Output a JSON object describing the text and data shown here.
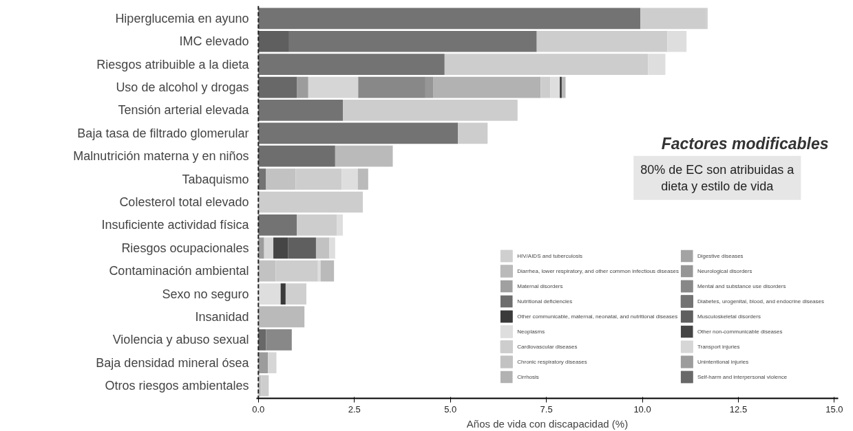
{
  "chart_data": {
    "type": "bar",
    "orientation": "horizontal",
    "stacked": true,
    "xlabel": "Años de vida con discapacidad (%)",
    "categories": [
      "Hiperglucemia en ayuno",
      "IMC elevado",
      "Riesgos atribuible a la dieta",
      "Uso de alcohol y drogas",
      "Tensión arterial elevada",
      "Baja tasa de filtrado glomerular",
      "Malnutrición materna y en niños",
      "Tabaquismo",
      "Colesterol total elevado",
      "Insuficiente actividad física",
      "Riesgos ocupacionales",
      "Contaminación ambiental",
      "Sexo no seguro",
      "Insanidad",
      "Violencia y abuso sexual",
      "Baja densidad mineral ósea",
      "Otros riesgos ambientales"
    ],
    "xlim": [
      -0.05,
      15.1
    ],
    "xticks": [
      {
        "value": 0,
        "label": "0.0"
      },
      2.5,
      {
        "value": 5,
        "label": "5.0"
      },
      7.5,
      {
        "value": 10,
        "label": "10.0"
      },
      12.5,
      {
        "value": 15,
        "label": "15.0"
      }
    ],
    "ref_lines": [
      {
        "axis": "x",
        "value": 0,
        "label": null,
        "color": "#222222",
        "line_style": "dashed"
      }
    ],
    "annotations": [
      "Factores modificables",
      "80% de EC son atribuidas a\ndieta y estilo de vida"
    ],
    "legend": "bottom right",
    "series": [
      {
        "name": "Self-harm and interpersonal violence",
        "color": "#686868",
        "values": [
          null,
          null,
          null,
          1.0,
          null,
          null,
          null,
          null,
          null,
          null,
          null,
          null,
          null,
          null,
          0.2,
          null,
          null
        ]
      },
      {
        "name": "Unintentional injuries",
        "color": "#9c9c9c",
        "values": [
          null,
          null,
          null,
          0.3,
          null,
          null,
          null,
          null,
          null,
          null,
          0.15,
          null,
          null,
          null,
          null,
          0.25,
          null
        ]
      },
      {
        "name": "Transport injuries",
        "color": "#d6d6d6",
        "values": [
          null,
          null,
          null,
          1.3,
          null,
          null,
          null,
          null,
          null,
          null,
          0.24,
          null,
          null,
          null,
          null,
          0.22,
          null
        ]
      },
      {
        "name": "Other non-communicable diseases",
        "color": "#454545",
        "values": [
          null,
          null,
          null,
          null,
          null,
          null,
          null,
          null,
          null,
          null,
          0.38,
          null,
          null,
          null,
          null,
          null,
          null
        ]
      },
      {
        "name": "Musculoskeletal disorders",
        "color": "#5f5f5f",
        "values": [
          null,
          0.8,
          null,
          null,
          null,
          null,
          null,
          null,
          null,
          null,
          0.73,
          null,
          null,
          null,
          null,
          null,
          null
        ]
      },
      {
        "name": "Diabetes, urogenital, blood, and endocrine diseases",
        "color": "#737373",
        "values": [
          9.95,
          6.45,
          4.85,
          null,
          2.2,
          5.2,
          null,
          0.2,
          null,
          1.0,
          null,
          null,
          null,
          null,
          null,
          null,
          null
        ]
      },
      {
        "name": "Mental and substance use disorders",
        "color": "#888888",
        "values": [
          null,
          null,
          null,
          1.75,
          null,
          null,
          null,
          null,
          null,
          null,
          null,
          null,
          null,
          null,
          0.67,
          null,
          null
        ]
      },
      {
        "name": "Neurological disorders",
        "color": "#969696",
        "values": [
          null,
          null,
          null,
          0.2,
          null,
          null,
          null,
          null,
          null,
          null,
          null,
          null,
          null,
          null,
          null,
          null,
          null
        ]
      },
      {
        "name": "Digestive diseases",
        "color": "#a3a3a3",
        "values": [
          null,
          null,
          null,
          null,
          null,
          null,
          null,
          null,
          null,
          null,
          null,
          null,
          null,
          null,
          null,
          null,
          null
        ]
      },
      {
        "name": "Cirrhosis",
        "color": "#b2b2b2",
        "values": [
          null,
          null,
          null,
          2.8,
          null,
          null,
          null,
          null,
          null,
          null,
          null,
          null,
          null,
          null,
          null,
          null,
          null
        ]
      },
      {
        "name": "Chronic respiratory diseases",
        "color": "#c2c2c2",
        "values": [
          null,
          null,
          null,
          null,
          null,
          null,
          null,
          0.77,
          null,
          null,
          0.35,
          0.45,
          null,
          null,
          null,
          null,
          0.07
        ]
      },
      {
        "name": "Cardiovascular diseases",
        "color": "#cdcdcd",
        "values": [
          1.7,
          3.4,
          5.3,
          0.25,
          4.55,
          0.77,
          null,
          1.2,
          2.72,
          1.05,
          null,
          1.1,
          null,
          null,
          null,
          null,
          0.2
        ]
      },
      {
        "name": "Neoplasms",
        "color": "#dedede",
        "values": [
          null,
          0.5,
          0.45,
          0.25,
          null,
          null,
          null,
          0.42,
          null,
          0.15,
          0.15,
          0.07,
          0.58,
          null,
          null,
          null,
          null
        ]
      },
      {
        "name": "Other communicable, maternal, neonatal, and nutritional diseases",
        "color": "#3a3a3a",
        "values": [
          null,
          null,
          null,
          0.05,
          null,
          null,
          null,
          null,
          null,
          null,
          null,
          null,
          0.13,
          null,
          null,
          null,
          null
        ]
      },
      {
        "name": "Nutritional deficiencies",
        "color": "#6e6e6e",
        "values": [
          null,
          null,
          null,
          null,
          null,
          null,
          2.0,
          null,
          null,
          null,
          null,
          null,
          null,
          null,
          null,
          null,
          null
        ]
      },
      {
        "name": "Maternal disorders",
        "color": "#a0a0a0",
        "values": [
          null,
          null,
          null,
          null,
          null,
          null,
          null,
          null,
          null,
          null,
          null,
          null,
          null,
          null,
          null,
          null,
          null
        ]
      },
      {
        "name": "Diarrhea, lower respiratory, and other common infectious diseases",
        "color": "#bababa",
        "values": [
          null,
          null,
          null,
          0.1,
          null,
          null,
          1.5,
          0.27,
          null,
          null,
          null,
          0.35,
          null,
          1.2,
          null,
          null,
          null
        ]
      },
      {
        "name": "HIV/AIDS and tuberculosis",
        "color": "#cfcfcf",
        "values": [
          0.05,
          null,
          null,
          null,
          null,
          null,
          null,
          null,
          null,
          null,
          null,
          null,
          0.54,
          null,
          null,
          null,
          null
        ]
      }
    ]
  }
}
